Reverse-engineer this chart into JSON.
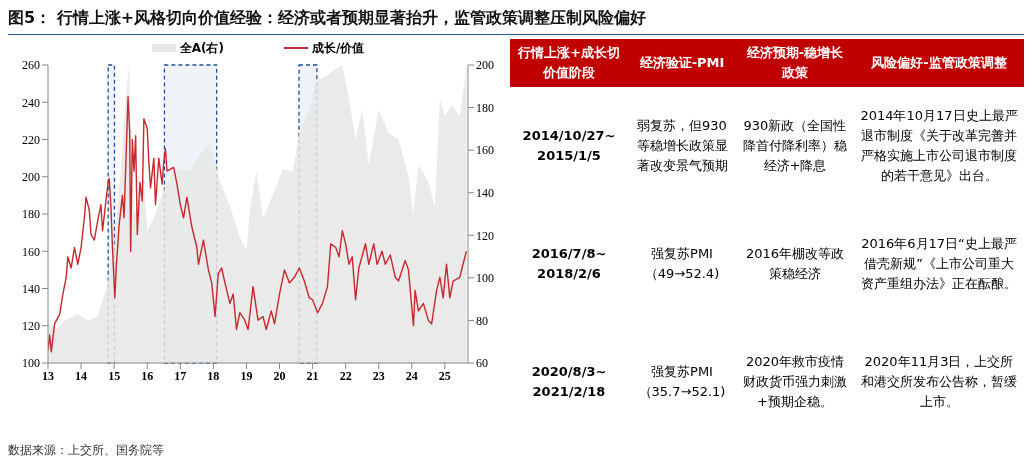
{
  "chart_data": [
    {
      "type": "line",
      "title": "图5：  行情上涨+风格切向价值经验：经济或者预期显著抬升，监管政策调整压制风险偏好",
      "annotations": [
        "数据来源：上交所、国务院等"
      ],
      "legend": "top",
      "xlim": [
        2013,
        2025.7
      ],
      "xticks": [
        {
          "value": 2013,
          "label": "13"
        },
        {
          "value": 2014,
          "label": "14"
        },
        {
          "value": 2015,
          "label": "15"
        },
        {
          "value": 2016,
          "label": "16"
        },
        {
          "value": 2017,
          "label": "17"
        },
        {
          "value": 2018,
          "label": "18"
        },
        {
          "value": 2019,
          "label": "19"
        },
        {
          "value": 2020,
          "label": "20"
        },
        {
          "value": 2021,
          "label": "21"
        },
        {
          "value": 2022,
          "label": "22"
        },
        {
          "value": 2023,
          "label": "23"
        },
        {
          "value": 2024,
          "label": "24"
        },
        {
          "value": 2025,
          "label": "25"
        }
      ],
      "ylim": [
        100,
        260
      ],
      "yticks": [
        100,
        120,
        140,
        160,
        180,
        200,
        220,
        240,
        260
      ],
      "y2lim": [
        60,
        200
      ],
      "y2ticks": [
        60,
        80,
        100,
        120,
        140,
        160,
        180,
        200
      ],
      "bands": [
        {
          "axis": "x",
          "from": 2014.82,
          "to": 2015.01,
          "color": "#1f4e9c"
        },
        {
          "axis": "x",
          "from": 2016.52,
          "to": 2018.1,
          "color": "#1f4e9c"
        },
        {
          "axis": "x",
          "from": 2020.59,
          "to": 2021.13,
          "color": "#1f4e9c"
        }
      ],
      "series": [
        {
          "name": "全A(右)",
          "type": "area",
          "axis": "y2",
          "color": "#e6e6e6",
          "x": [
            2013,
            2013.3,
            2013.5,
            2013.9,
            2014.2,
            2014.5,
            2014.8,
            2015,
            2015.2,
            2015.35,
            2015.45,
            2015.5,
            2015.6,
            2015.66,
            2015.75,
            2015.9,
            2016,
            2016.2,
            2016.5,
            2016.8,
            2017,
            2017.3,
            2017.6,
            2017.9,
            2018.2,
            2018.5,
            2018.8,
            2019,
            2019.1,
            2019.3,
            2019.5,
            2019.8,
            2020.1,
            2020.4,
            2020.6,
            2020.9,
            2021.1,
            2021.5,
            2021.9,
            2022.1,
            2022.3,
            2022.5,
            2022.7,
            2023,
            2023.3,
            2023.6,
            2023.9,
            2024.05,
            2024.2,
            2024.5,
            2024.7,
            2024.85,
            2025,
            2025.2,
            2025.45,
            2025.66
          ],
          "values": [
            79,
            76,
            80,
            83,
            80,
            82,
            97,
            114,
            150,
            184,
            200,
            168,
            130,
            132,
            137,
            148,
            122,
            128,
            141,
            150,
            151,
            150,
            158,
            164,
            145,
            134,
            119,
            113,
            131,
            150,
            128,
            139,
            151,
            150,
            168,
            179,
            192,
            196,
            200,
            184,
            165,
            179,
            153,
            179,
            168,
            165,
            148,
            130,
            153,
            145,
            133,
            184,
            176,
            181,
            176,
            200
          ]
        },
        {
          "name": "成长/价值",
          "type": "line",
          "color": "#c8282d",
          "x": [
            2013,
            2013.05,
            2013.1,
            2013.2,
            2013.35,
            2013.45,
            2013.55,
            2013.6,
            2013.7,
            2013.8,
            2013.9,
            2014,
            2014.1,
            2014.15,
            2014.25,
            2014.3,
            2014.4,
            2014.5,
            2014.6,
            2014.65,
            2014.75,
            2014.82,
            2014.85,
            2014.9,
            2014.95,
            2015,
            2015.02,
            2015.07,
            2015.15,
            2015.25,
            2015.3,
            2015.42,
            2015.47,
            2015.5,
            2015.55,
            2015.6,
            2015.65,
            2015.7,
            2015.78,
            2015.85,
            2015.9,
            2016,
            2016.05,
            2016.1,
            2016.2,
            2016.25,
            2016.35,
            2016.45,
            2016.5,
            2016.55,
            2016.6,
            2016.8,
            2016.9,
            2017,
            2017.1,
            2017.2,
            2017.35,
            2017.5,
            2017.55,
            2017.7,
            2017.85,
            2017.95,
            2018.05,
            2018.15,
            2018.25,
            2018.35,
            2018.5,
            2018.6,
            2018.7,
            2018.8,
            2018.95,
            2019.05,
            2019.2,
            2019.35,
            2019.5,
            2019.6,
            2019.75,
            2019.85,
            2020,
            2020.15,
            2020.3,
            2020.45,
            2020.6,
            2020.75,
            2020.9,
            2021,
            2021.15,
            2021.3,
            2021.45,
            2021.55,
            2021.7,
            2021.8,
            2021.9,
            2022,
            2022.1,
            2022.2,
            2022.3,
            2022.4,
            2022.6,
            2022.7,
            2022.85,
            2022.95,
            2023.1,
            2023.2,
            2023.35,
            2023.5,
            2023.6,
            2023.8,
            2023.9,
            2024.05,
            2024.1,
            2024.2,
            2024.35,
            2024.5,
            2024.6,
            2024.75,
            2024.85,
            2024.95,
            2025.05,
            2025.15,
            2025.25,
            2025.45,
            2025.55,
            2025.65
          ],
          "values": [
            107,
            115,
            106,
            121,
            126,
            137,
            146,
            157,
            151,
            162,
            153,
            162,
            178,
            189,
            182,
            169,
            166,
            176,
            185,
            171,
            187,
            197,
            199,
            185,
            162,
            143,
            135,
            153,
            174,
            190,
            178,
            243,
            224,
            160,
            220,
            203,
            222,
            169,
            197,
            187,
            231,
            226,
            208,
            194,
            210,
            185,
            210,
            196,
            208,
            215,
            203,
            205,
            196,
            185,
            178,
            189,
            173,
            162,
            153,
            166,
            150,
            143,
            125,
            148,
            151,
            143,
            132,
            137,
            118,
            127,
            123,
            118,
            141,
            123,
            125,
            118,
            128,
            121,
            137,
            150,
            143,
            146,
            151,
            144,
            135,
            134,
            127,
            132,
            141,
            164,
            162,
            157,
            171,
            164,
            153,
            157,
            134,
            151,
            164,
            153,
            164,
            153,
            160,
            153,
            158,
            146,
            144,
            155,
            150,
            120,
            139,
            128,
            132,
            123,
            121,
            139,
            146,
            135,
            153,
            135,
            144,
            146,
            153,
            160
          ]
        }
      ]
    },
    {
      "type": "other",
      "annotations": [
        "行情上涨+成长切价值阶段",
        "经济验证-PMI",
        "经济预期-稳增长政策",
        "风险偏好-监管政策调整",
        "2014/10/27~2015/1/5",
        "弱复苏，但930等稳增长政策显著改变景气预期",
        "930新政（全国性降首付降利率）稳经济+降息",
        "2014年10月17日史上最严退市制度《关于改革完善并严格实施上市公司退市制度的若干意见》出台。",
        "2016/7/8~2018/2/6",
        "强复苏PMI（49→52.4)",
        "2016年棚改等政策稳经济",
        "2016年6月17日“史上最严借壳新规”《上市公司重大资产重组办法》正在酝酿。",
        "2020/8/3~2021/2/18",
        "强复苏PMI（35.7→52.1)",
        "2020年救市疫情财政货币强力刺激+预期企稳。",
        "2020年11月3日，上交所和港交所发布公告称，暂缓上市。"
      ]
    }
  ]
}
